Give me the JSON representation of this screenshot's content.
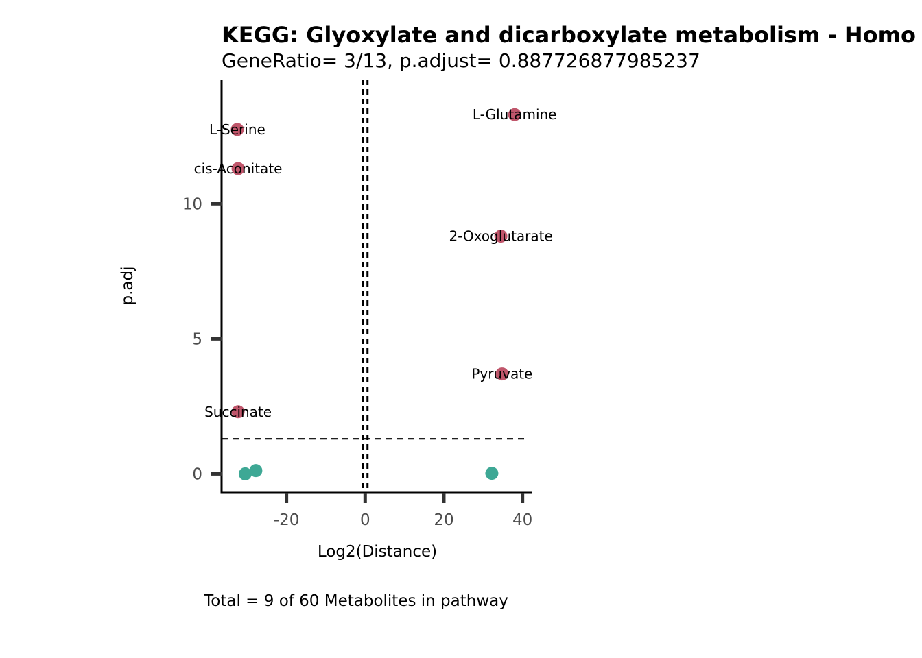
{
  "chart_data": {
    "type": "scatter",
    "title": "KEGG: Glyoxylate and dicarboxylate metabolism - Homo",
    "subtitle": "GeneRatio= 3/13, p.adjust= 0.887726877985237",
    "xlabel": "Log2(Distance)",
    "ylabel": "p.adj",
    "caption": "Total = 9 of 60 Metabolites in pathway",
    "xlim": [
      -36.5,
      42.5
    ],
    "ylim": [
      -0.7,
      14.6
    ],
    "xticks": [
      -20,
      0,
      20,
      40
    ],
    "yticks": [
      0,
      5,
      10
    ],
    "vlines": [
      -0.6,
      0.6
    ],
    "hline": 1.3,
    "grid": false,
    "colors": {
      "significant": "#c0566b",
      "nonsignificant": "#3ea895",
      "axis": "#000000"
    },
    "points": [
      {
        "x": 38,
        "y": 13.3,
        "label": "L-Glutamine",
        "group": "significant"
      },
      {
        "x": -32.5,
        "y": 12.75,
        "label": "L-Serine",
        "group": "significant"
      },
      {
        "x": -32.3,
        "y": 11.3,
        "label": "cis-Aconitate",
        "group": "significant"
      },
      {
        "x": 34.5,
        "y": 8.8,
        "label": "2-Oxoglutarate",
        "group": "significant"
      },
      {
        "x": 34.8,
        "y": 3.7,
        "label": "Pyruvate",
        "group": "significant"
      },
      {
        "x": -32.3,
        "y": 2.3,
        "label": "Succinate",
        "group": "significant"
      },
      {
        "x": -30.5,
        "y": 0.0,
        "label": "",
        "group": "nonsignificant"
      },
      {
        "x": -27.8,
        "y": 0.12,
        "label": "",
        "group": "nonsignificant"
      },
      {
        "x": 32.2,
        "y": 0.02,
        "label": "",
        "group": "nonsignificant"
      }
    ]
  }
}
